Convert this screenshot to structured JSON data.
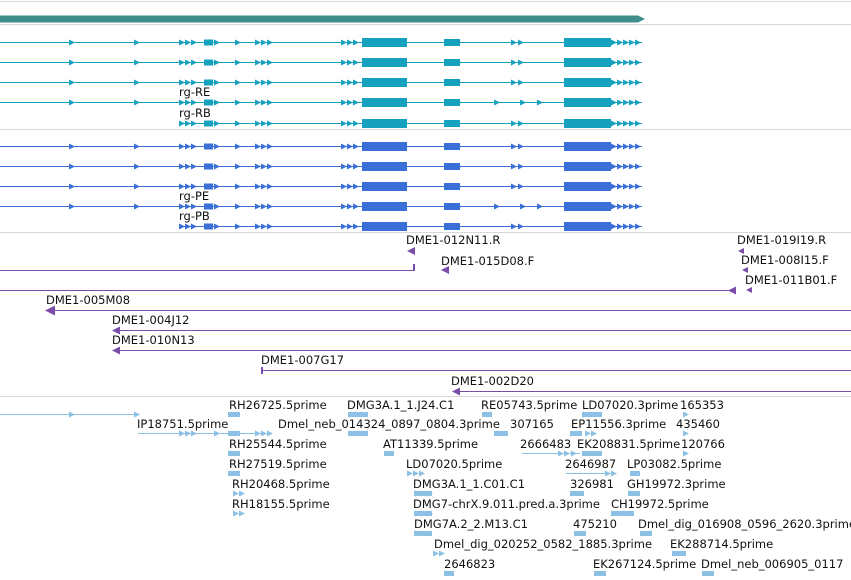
{
  "view": "genome-browser-tracks",
  "colors": {
    "background": "#ffffff",
    "separator": "#d8d8d8",
    "gene_bar": "#3f8e8c",
    "transcript": "#16a2bf",
    "cds": "#3a6fd8",
    "clone": "#7a4ea8",
    "est": "#8cc0e4",
    "label": "#111111"
  },
  "tracks": {
    "transcripts": {
      "labels": [
        "rg-RE",
        "rg-RB"
      ]
    },
    "proteins": {
      "labels": [
        "rg-PE",
        "rg-PB"
      ]
    },
    "bac_clones": {
      "labels": [
        "DME1-012N11.R",
        "DME1-015D08.F",
        "DME1-019I19.R",
        "DME1-008I15.F",
        "DME1-011B01.F",
        "DME1-005M08",
        "DME1-004J12",
        "DME1-010N13",
        "DME1-007G17",
        "DME1-002D20"
      ]
    },
    "est_alignments": {
      "labels": [
        "RH26725.5prime",
        "DMG3A.1_1.J24.C1",
        "RE05743.5prime",
        "LD07020.3prime",
        "165353",
        "IP18751.5prime",
        "Dmel_neb_014324_0897_0804.3prime",
        "307165",
        "EP11556.3prime",
        "435460",
        "RH25544.5prime",
        "AT11339.5prime",
        "2666483",
        "EK208831.5prime",
        "120766",
        "RH27519.5prime",
        "LD07020.5prime",
        "2646987",
        "LP03082.5prime",
        "RH20468.5prime",
        "DMG3A.1_1.C01.C1",
        "326981",
        "GH19972.3prime",
        "RH18155.5prime",
        "DMG7-chrX.9.011.pred.a.3prime",
        "CH19972.5prime",
        "DMG7A.2_2.M13.C1",
        "475210",
        "Dmel_dig_016908_0596_2620.3prime",
        "Dmel_dig_020252_0582_1885.3prime",
        "EK288714.5prime",
        "2646823",
        "EK267124.5prime",
        "Dmel_neb_006905_0117"
      ]
    }
  }
}
